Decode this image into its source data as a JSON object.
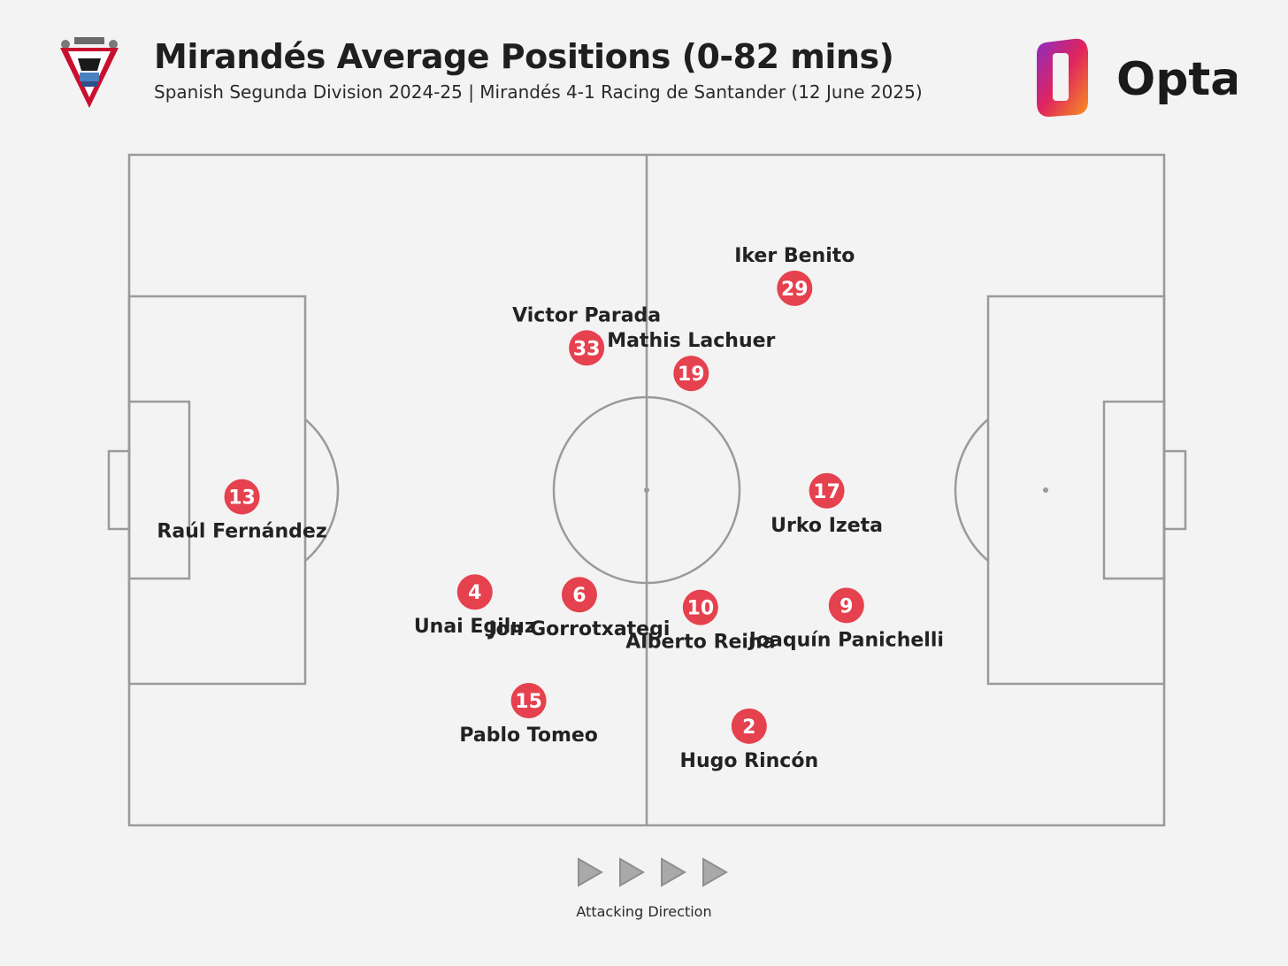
{
  "header": {
    "title": "Mirandés Average Positions (0-82 mins)",
    "subtitle": "Spanish Segunda Division 2024-25 | Mirandés 4-1 Racing de Santander (12 June 2025)",
    "brand": "Opta"
  },
  "colors": {
    "marker": "#e5414e",
    "pitch_lines": "#9a9a9a",
    "background": "#f3f3f3"
  },
  "chart_data": {
    "type": "scatter",
    "title": "Mirandés Average Positions (0-82 mins)",
    "x_range": [
      0,
      100
    ],
    "y_range": [
      0,
      100
    ],
    "attacking_direction": "left-to-right",
    "players": [
      {
        "number": 13,
        "name": "Raúl Fernández",
        "x": 10.9,
        "y": 49.0,
        "label_pos": "below"
      },
      {
        "number": 4,
        "name": "Unai Egiluz",
        "x": 33.4,
        "y": 34.8,
        "label_pos": "below"
      },
      {
        "number": 6,
        "name": "Jon Gorrotxategi",
        "x": 43.5,
        "y": 34.4,
        "label_pos": "below"
      },
      {
        "number": 15,
        "name": "Pablo Tomeo",
        "x": 38.6,
        "y": 18.6,
        "label_pos": "below"
      },
      {
        "number": 33,
        "name": "Victor Parada",
        "x": 44.2,
        "y": 71.2,
        "label_pos": "above"
      },
      {
        "number": 19,
        "name": "Mathis Lachuer",
        "x": 54.3,
        "y": 67.4,
        "label_pos": "above"
      },
      {
        "number": 10,
        "name": "Alberto Reina",
        "x": 55.2,
        "y": 32.5,
        "label_pos": "below"
      },
      {
        "number": 2,
        "name": "Hugo Rincón",
        "x": 59.9,
        "y": 14.8,
        "label_pos": "below"
      },
      {
        "number": 29,
        "name": "Iker Benito",
        "x": 64.3,
        "y": 80.1,
        "label_pos": "above"
      },
      {
        "number": 17,
        "name": "Urko Izeta",
        "x": 67.4,
        "y": 49.9,
        "label_pos": "below"
      },
      {
        "number": 9,
        "name": "Joaquín Panichelli",
        "x": 69.3,
        "y": 32.8,
        "label_pos": "below"
      }
    ]
  },
  "footer": {
    "direction_label": "Attacking Direction"
  }
}
